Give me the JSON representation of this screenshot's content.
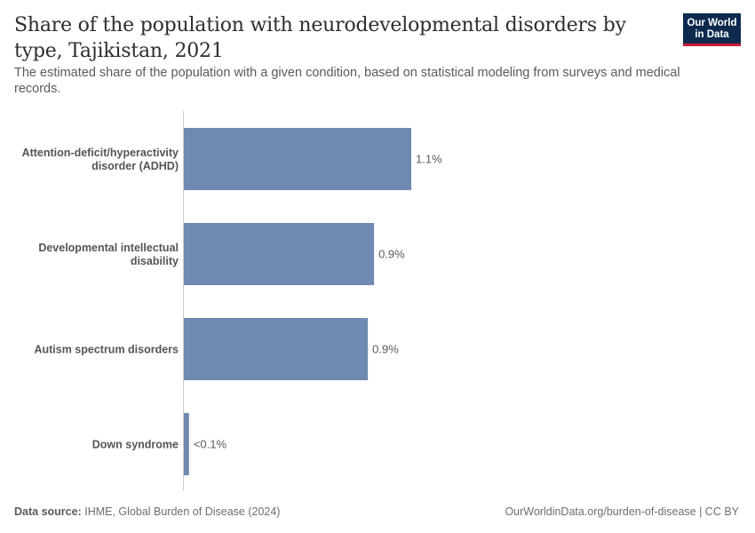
{
  "header": {
    "title": "Share of the population with neurodevelopmental disorders by type, Tajikistan, 2021",
    "subtitle": "The estimated share of the population with a given condition, based on statistical modeling from surveys and medical records.",
    "logo_line1": "Our World",
    "logo_line2": "in Data"
  },
  "footer": {
    "source_label": "Data source:",
    "source_text": "IHME, Global Burden of Disease (2024)",
    "url_text": "OurWorldinData.org/burden-of-disease | CC BY"
  },
  "colors": {
    "bar": "#6f89b0",
    "axis": "#cccccc",
    "logo_bg": "#0d2a4e",
    "logo_accent": "#cf1b3a"
  },
  "chart_data": {
    "type": "bar",
    "orientation": "horizontal",
    "categories": [
      [
        "Attention-deficit/hyperactivity",
        "disorder (ADHD)"
      ],
      [
        "Developmental intellectual",
        "disability"
      ],
      [
        "Autism spectrum disorders"
      ],
      [
        "Down syndrome"
      ]
    ],
    "values": [
      1.1,
      0.92,
      0.89,
      0.025
    ],
    "value_labels": [
      "1.1%",
      "0.9%",
      "0.9%",
      "<0.1%"
    ],
    "unit": "%",
    "xlim": [
      0,
      1.1
    ],
    "grid": false
  }
}
